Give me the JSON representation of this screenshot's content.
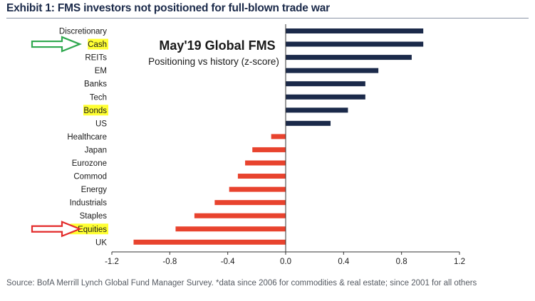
{
  "exhibit_title": "Exhibit 1: FMS investors not positioned for full-blown trade war",
  "source_note": "Source:  BofA Merrill Lynch Global Fund Manager Survey. *data since 2006 for commodities & real estate; since 2001 for all others",
  "colors": {
    "positive": "#1b2a4a",
    "negative": "#e8432e",
    "highlight": "#ffff33",
    "arrow_green": "#2fa84f",
    "arrow_red": "#e32b2b",
    "axis": "#333333"
  },
  "chart_data": {
    "type": "bar",
    "orientation": "horizontal",
    "title": "May'19 Global FMS",
    "subtitle": "Positioning vs history (z-score)",
    "xlabel": "",
    "ylabel": "",
    "xlim": [
      -1.2,
      1.2
    ],
    "xticks": [
      -1.2,
      -0.8,
      -0.4,
      0.0,
      0.4,
      0.8,
      1.2
    ],
    "xtick_labels": [
      "-1.2",
      "-0.8",
      "-0.4",
      "0.0",
      "0.4",
      "0.8",
      "1.2"
    ],
    "grid": false,
    "categories": [
      "Discretionary",
      "Cash",
      "REITs",
      "EM",
      "Banks",
      "Tech",
      "Bonds",
      "US",
      "Healthcare",
      "Japan",
      "Eurozone",
      "Commod",
      "Energy",
      "Industrials",
      "Staples",
      "Equities",
      "UK"
    ],
    "values": [
      0.95,
      0.95,
      0.87,
      0.64,
      0.55,
      0.55,
      0.43,
      0.31,
      -0.1,
      -0.23,
      -0.28,
      -0.33,
      -0.39,
      -0.49,
      -0.63,
      -0.76,
      -1.05
    ],
    "highlighted_categories": [
      "Cash",
      "Bonds",
      "Equities"
    ],
    "arrows": [
      {
        "target": "Cash",
        "color": "green"
      },
      {
        "target": "Equities",
        "color": "red"
      }
    ]
  }
}
